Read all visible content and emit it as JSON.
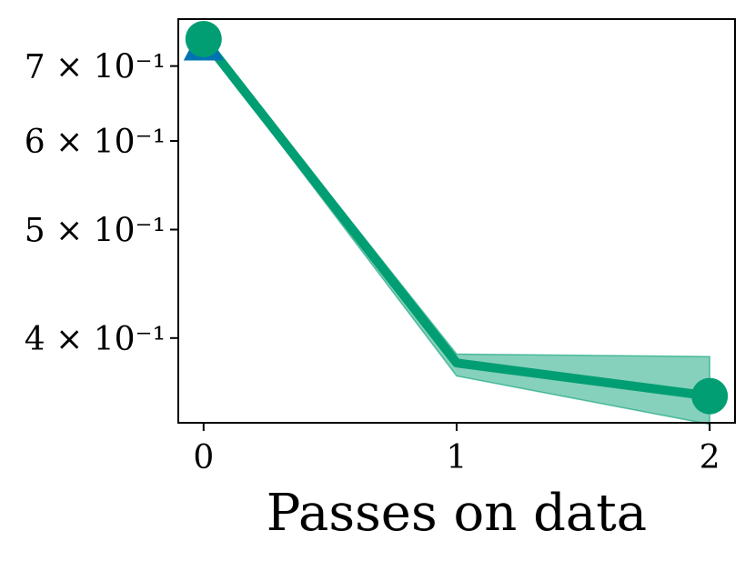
{
  "chart_data": {
    "type": "line",
    "yscale": "log",
    "title": "",
    "xlabel": "Passes on data",
    "ylabel": "",
    "xlim": [
      -0.1,
      2.1
    ],
    "ylim": [
      0.336,
      0.771
    ],
    "xticks": [
      {
        "value": 0,
        "label": "0"
      },
      {
        "value": 1,
        "label": "1"
      },
      {
        "value": 2,
        "label": "2"
      }
    ],
    "yticks": [
      {
        "value": 0.7,
        "label": "7 × 10⁻¹"
      },
      {
        "value": 0.6,
        "label": "6 × 10⁻¹"
      },
      {
        "value": 0.5,
        "label": "5 × 10⁻¹"
      },
      {
        "value": 0.4,
        "label": "4 × 10⁻¹"
      }
    ],
    "grid": false,
    "series": [
      {
        "x": [
          0,
          1,
          2
        ],
        "y": [
          0.74,
          0.38,
          0.355
        ],
        "y_low": [
          0.735,
          0.37,
          0.335
        ],
        "y_high": [
          0.745,
          0.387,
          0.385
        ],
        "color": "#029e73",
        "fill_color": "#029e73",
        "marker": "circle"
      }
    ],
    "hidden_marker": {
      "x": 0,
      "y": 0.735,
      "color": "#0173b2",
      "marker": "triangle"
    }
  }
}
